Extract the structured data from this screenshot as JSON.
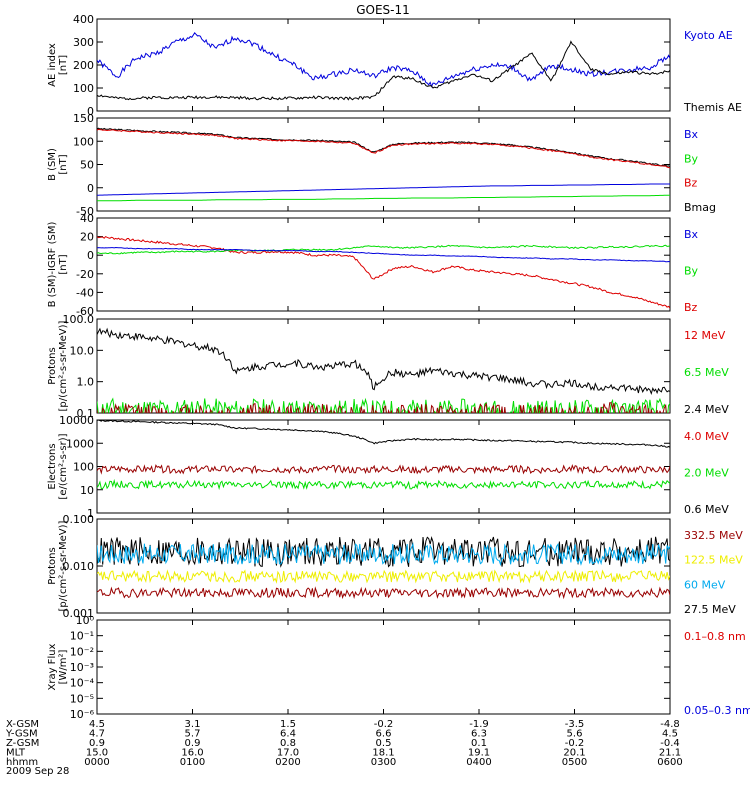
{
  "title": "GOES-11",
  "colors": {
    "black": "#000000",
    "blue": "#0000dd",
    "green": "#00dd00",
    "red": "#dd0000",
    "darkred": "#990000",
    "yellow": "#eeee00",
    "cyan": "#00aaee"
  },
  "chart_data": [
    {
      "type": "line",
      "ylabel": [
        "AE index",
        "[nT]"
      ],
      "yticks": [
        "400",
        "300",
        "200",
        "100",
        "0"
      ],
      "ylim": [
        0,
        400
      ],
      "legend": [
        {
          "name": "Kyoto AE",
          "color": "#0000dd"
        },
        {
          "name": "Themis AE",
          "color": "#000000"
        }
      ],
      "series": [
        {
          "name": "Kyoto AE",
          "color": "#0000dd",
          "seed": 1,
          "noise": 12,
          "y": [
            220,
            150,
            230,
            250,
            300,
            330,
            270,
            320,
            290,
            240,
            200,
            140,
            160,
            180,
            150,
            190,
            170,
            110,
            150,
            180,
            200,
            190,
            130,
            200,
            180,
            160,
            170,
            180,
            190,
            240
          ]
        },
        {
          "name": "Themis AE",
          "color": "#000000",
          "seed": 2,
          "noise": 6,
          "y": [
            70,
            55,
            55,
            60,
            58,
            60,
            60,
            58,
            55,
            55,
            55,
            60,
            55,
            55,
            60,
            150,
            140,
            100,
            130,
            160,
            130,
            190,
            250,
            130,
            300,
            180,
            160,
            170,
            160,
            175
          ]
        }
      ]
    },
    {
      "type": "line",
      "ylabel": [
        "B (SM)",
        "[nT]"
      ],
      "yticks": [
        "150",
        "100",
        "50",
        "0",
        "-50"
      ],
      "ylim": [
        -50,
        150
      ],
      "legend": [
        {
          "name": "Bx",
          "color": "#0000dd"
        },
        {
          "name": "By",
          "color": "#00dd00"
        },
        {
          "name": "Bz",
          "color": "#dd0000"
        },
        {
          "name": "Bmag",
          "color": "#000000"
        }
      ],
      "series": [
        {
          "name": "Bmag",
          "color": "#000000",
          "seed": 3,
          "noise": 1.5,
          "y": [
            127,
            125,
            123,
            121,
            119,
            117,
            115,
            108,
            106,
            104,
            103,
            102,
            100,
            98,
            76,
            94,
            96,
            97,
            98,
            97,
            95,
            92,
            87,
            82,
            76,
            68,
            62,
            58,
            52,
            46
          ]
        },
        {
          "name": "Bz",
          "color": "#dd0000",
          "seed": 4,
          "noise": 1.5,
          "y": [
            125,
            123,
            121,
            119,
            117,
            115,
            113,
            106,
            104,
            102,
            101,
            100,
            98,
            96,
            74,
            92,
            94,
            95,
            96,
            95,
            93,
            90,
            85,
            80,
            74,
            66,
            60,
            56,
            50,
            44
          ]
        },
        {
          "name": "Bx",
          "color": "#0000dd",
          "seed": 5,
          "noise": 0,
          "y": [
            -16,
            -15,
            -14,
            -13,
            -12,
            -11,
            -10,
            -9,
            -8,
            -7,
            -6,
            -5,
            -4,
            -3,
            -2,
            -1,
            0,
            1,
            2,
            3,
            4,
            4,
            5,
            5,
            6,
            6,
            7,
            7,
            8,
            8
          ]
        },
        {
          "name": "By",
          "color": "#00dd00",
          "seed": 6,
          "noise": 0,
          "y": [
            -28,
            -28,
            -27,
            -27,
            -27,
            -27,
            -26,
            -26,
            -26,
            -25,
            -25,
            -25,
            -24,
            -24,
            -23,
            -23,
            -22,
            -22,
            -22,
            -21,
            -21,
            -20,
            -20,
            -19,
            -19,
            -18,
            -18,
            -17,
            -17,
            -16
          ]
        }
      ]
    },
    {
      "type": "line",
      "ylabel": [
        "B (SM)-IGRF (SM)",
        "[nT]"
      ],
      "yticks": [
        "40",
        "20",
        "0",
        "-20",
        "-40",
        "-60"
      ],
      "ylim": [
        -60,
        40
      ],
      "legend": [
        {
          "name": "Bx",
          "color": "#0000dd"
        },
        {
          "name": "By",
          "color": "#00dd00"
        },
        {
          "name": "Bz",
          "color": "#dd0000"
        }
      ],
      "series": [
        {
          "name": "Bz",
          "color": "#dd0000",
          "seed": 7,
          "noise": 1.2,
          "y": [
            20,
            18,
            16,
            14,
            12,
            10,
            8,
            3,
            3,
            4,
            3,
            0,
            0,
            -2,
            -26,
            -14,
            -12,
            -18,
            -12,
            -16,
            -18,
            -20,
            -22,
            -26,
            -30,
            -34,
            -40,
            -44,
            -50,
            -56
          ]
        },
        {
          "name": "By",
          "color": "#00dd00",
          "seed": 8,
          "noise": 0.8,
          "y": [
            2,
            2,
            3,
            3,
            4,
            4,
            4,
            5,
            5,
            5,
            6,
            6,
            6,
            8,
            10,
            8,
            8,
            9,
            10,
            9,
            8,
            9,
            10,
            9,
            8,
            8,
            9,
            9,
            10,
            10
          ]
        },
        {
          "name": "Bx",
          "color": "#0000dd",
          "seed": 9,
          "noise": 0.3,
          "y": [
            8,
            8,
            7,
            7,
            7,
            6,
            6,
            6,
            5,
            5,
            5,
            4,
            4,
            3,
            2,
            1,
            0,
            0,
            -1,
            -1,
            -2,
            -3,
            -3,
            -4,
            -4,
            -5,
            -5,
            -6,
            -6,
            -7
          ]
        }
      ]
    },
    {
      "type": "line",
      "log": true,
      "ylabel": [
        "Protons",
        "[p/(cm²-s-sr-MeV)]"
      ],
      "yticks": [
        "100.0",
        "10.0",
        "1.0",
        "0.1"
      ],
      "ylim": [
        0.1,
        100
      ],
      "legend": [
        {
          "name": "12 MeV",
          "color": "#dd0000"
        },
        {
          "name": "6.5 MeV",
          "color": "#00dd00"
        },
        {
          "name": "2.4 MeV",
          "color": "#000000"
        }
      ],
      "series": [
        {
          "name": "2.4 MeV",
          "color": "#000000",
          "seed": 10,
          "noise": 0.12,
          "y": [
            40,
            32,
            28,
            22,
            18,
            14,
            11,
            2,
            3,
            3.5,
            4,
            3,
            3,
            4,
            0.6,
            2,
            1.6,
            2.2,
            1.8,
            1.5,
            1.4,
            1.1,
            0.9,
            0.8,
            0.9,
            0.7,
            0.7,
            0.6,
            0.5,
            0.6
          ]
        },
        {
          "name": "6.5 MeV",
          "color": "#00dd00",
          "seed": 11,
          "noise": 0.35,
          "clip_low": true,
          "y": [
            0.12,
            0.14,
            0.12,
            0.13,
            0.12,
            0.14,
            0.13,
            0.12,
            0.13,
            0.12,
            0.13,
            0.12,
            0.12,
            0.13,
            0.12,
            0.12,
            0.13,
            0.12,
            0.12,
            0.13,
            0.12,
            0.12,
            0.13,
            0.12,
            0.12,
            0.13,
            0.12,
            0.12,
            0.13,
            0.12
          ]
        },
        {
          "name": "12 MeV",
          "color": "#990000",
          "seed": 12,
          "noise": 0.3,
          "clip_low": true,
          "y": [
            0.09,
            0.09,
            0.11,
            0.09,
            0.09,
            0.11,
            0.09,
            0.09,
            0.11,
            0.09,
            0.09,
            0.11,
            0.09,
            0.09,
            0.11,
            0.09,
            0.09,
            0.11,
            0.09,
            0.09,
            0.11,
            0.09,
            0.09,
            0.11,
            0.09,
            0.09,
            0.11,
            0.09,
            0.09,
            0.11
          ]
        }
      ]
    },
    {
      "type": "line",
      "log": true,
      "ylabel": [
        "Electrons",
        "[e/(cm²-s-sr)]"
      ],
      "yticks": [
        "10000",
        "1000",
        "100",
        "10",
        "1"
      ],
      "ylim": [
        1,
        10000
      ],
      "legend": [
        {
          "name": "4.0 MeV",
          "color": "#dd0000"
        },
        {
          "name": "2.0 MeV",
          "color": "#00dd00"
        },
        {
          "name": "0.6 MeV",
          "color": "#000000"
        }
      ],
      "series": [
        {
          "name": "0.6 MeV",
          "color": "#000000",
          "seed": 13,
          "noise": 0.03,
          "y": [
            9500,
            9000,
            8500,
            8000,
            7500,
            7000,
            6500,
            4500,
            4300,
            4000,
            3700,
            3400,
            2800,
            2000,
            1000,
            1300,
            1500,
            1400,
            1500,
            1400,
            1300,
            1300,
            1200,
            1150,
            1100,
            1000,
            950,
            900,
            850,
            700
          ]
        },
        {
          "name": "4.0 MeV",
          "color": "#990000",
          "seed": 14,
          "noise": 0.15,
          "y": [
            70,
            80,
            75,
            80,
            70,
            75,
            80,
            70,
            75,
            80,
            70,
            75,
            80,
            70,
            75,
            80,
            70,
            75,
            80,
            70,
            75,
            80,
            70,
            75,
            80,
            70,
            75,
            80,
            70,
            80
          ]
        },
        {
          "name": "2.0 MeV",
          "color": "#00dd00",
          "seed": 15,
          "noise": 0.15,
          "y": [
            15,
            18,
            16,
            17,
            15,
            18,
            16,
            17,
            15,
            18,
            16,
            17,
            15,
            18,
            16,
            17,
            15,
            18,
            16,
            17,
            15,
            18,
            16,
            17,
            15,
            18,
            16,
            17,
            15,
            18
          ]
        }
      ]
    },
    {
      "type": "line",
      "log": true,
      "ylabel": [
        "Protons",
        "[p/(cm²-s-sr-MeV)]"
      ],
      "yticks": [
        "0.100",
        "0.010",
        "0.001"
      ],
      "ylim": [
        0.001,
        0.1
      ],
      "legend": [
        {
          "name": "332.5 MeV",
          "color": "#990000"
        },
        {
          "name": "122.5 MeV",
          "color": "#eeee00"
        },
        {
          "name": "60 MeV",
          "color": "#00aaee"
        },
        {
          "name": "27.5 MeV",
          "color": "#000000"
        }
      ],
      "series": [
        {
          "name": "27.5 MeV",
          "color": "#000000",
          "seed": 16,
          "noise": 0.32,
          "y": [
            0.02,
            0.02,
            0.02,
            0.02,
            0.02,
            0.02,
            0.02,
            0.02,
            0.02,
            0.02,
            0.02,
            0.02,
            0.02,
            0.02,
            0.02,
            0.02,
            0.02,
            0.02,
            0.02,
            0.02,
            0.02,
            0.02,
            0.02,
            0.02,
            0.02,
            0.02,
            0.02,
            0.02,
            0.02,
            0.02
          ]
        },
        {
          "name": "60 MeV",
          "color": "#00aaee",
          "seed": 17,
          "noise": 0.22,
          "y": [
            0.018,
            0.018,
            0.018,
            0.018,
            0.018,
            0.018,
            0.018,
            0.018,
            0.018,
            0.018,
            0.018,
            0.018,
            0.018,
            0.018,
            0.018,
            0.018,
            0.018,
            0.018,
            0.018,
            0.018,
            0.018,
            0.018,
            0.018,
            0.018,
            0.018,
            0.018,
            0.018,
            0.018,
            0.018,
            0.018
          ]
        },
        {
          "name": "122.5 MeV",
          "color": "#eeee00",
          "seed": 18,
          "noise": 0.12,
          "y": [
            0.006,
            0.006,
            0.006,
            0.006,
            0.006,
            0.006,
            0.006,
            0.006,
            0.006,
            0.006,
            0.006,
            0.006,
            0.006,
            0.006,
            0.006,
            0.006,
            0.006,
            0.006,
            0.006,
            0.006,
            0.006,
            0.006,
            0.006,
            0.006,
            0.006,
            0.006,
            0.006,
            0.006,
            0.006,
            0.006
          ]
        },
        {
          "name": "332.5 MeV",
          "color": "#990000",
          "seed": 19,
          "noise": 0.1,
          "y": [
            0.0027,
            0.0027,
            0.0027,
            0.0027,
            0.0027,
            0.0027,
            0.0027,
            0.0027,
            0.0027,
            0.0027,
            0.0027,
            0.0027,
            0.0027,
            0.0027,
            0.0027,
            0.0027,
            0.0027,
            0.0027,
            0.0027,
            0.0027,
            0.0027,
            0.0027,
            0.0027,
            0.0027,
            0.0027,
            0.0027,
            0.0027,
            0.0027,
            0.0027,
            0.0027
          ]
        }
      ]
    },
    {
      "type": "line",
      "log": true,
      "ylabel": [
        "Xray Flux",
        "[W/m²]"
      ],
      "yticks": [
        "10⁰",
        "10⁻¹",
        "10⁻²",
        "10⁻³",
        "10⁻⁴",
        "10⁻⁵",
        "10⁻⁶"
      ],
      "ylim": [
        1e-06,
        1
      ],
      "legend": [
        {
          "name": "0.1–0.8 nm",
          "color": "#dd0000"
        },
        {
          "name": "0.05–0.3 nm",
          "color": "#0000dd"
        }
      ],
      "series": []
    }
  ],
  "x_axis": {
    "row_labels": [
      "X-GSM",
      "Y-GSM",
      "Z-GSM",
      "MLT",
      "hhmm"
    ],
    "columns": [
      [
        "4.5",
        "4.7",
        "0.9",
        "15.0",
        "0000"
      ],
      [
        "3.1",
        "5.7",
        "0.9",
        "16.0",
        "0100"
      ],
      [
        "1.5",
        "6.4",
        "0.8",
        "17.0",
        "0200"
      ],
      [
        "-0.2",
        "6.6",
        "0.5",
        "18.1",
        "0300"
      ],
      [
        "-1.9",
        "6.3",
        "0.1",
        "19.1",
        "0400"
      ],
      [
        "-3.5",
        "5.6",
        "-0.2",
        "20.1",
        "0500"
      ],
      [
        "-4.8",
        "4.5",
        "-0.4",
        "21.1",
        "0600"
      ]
    ],
    "date": "2009 Sep 28"
  }
}
